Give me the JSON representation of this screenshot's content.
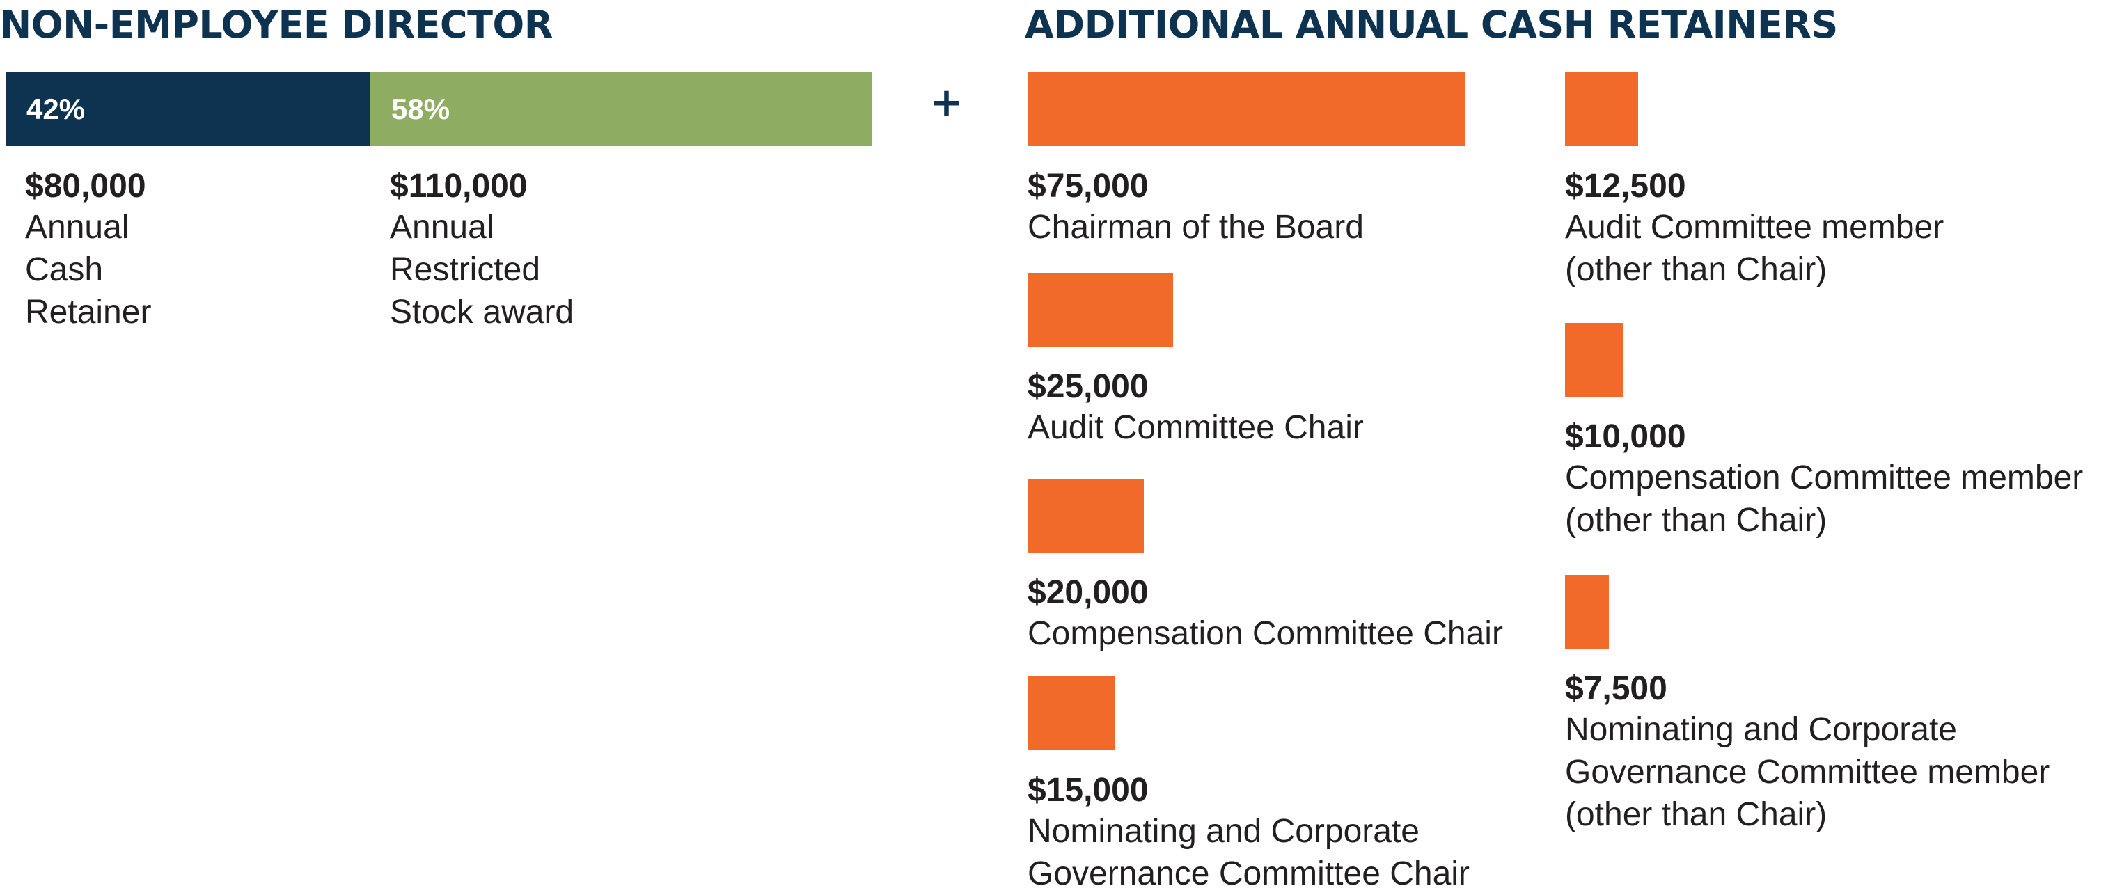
{
  "colors": {
    "heading": "#0d3351",
    "cash": "#0d3351",
    "stock": "#8fac63",
    "retainer": "#f26a2a",
    "text": "#231f20"
  },
  "left_title": "NON-EMPLOYEE DIRECTOR",
  "right_title": "ADDITIONAL ANNUAL CASH RETAINERS",
  "plus_symbol": "+",
  "chart_data": [
    {
      "type": "bar",
      "title": "NON-EMPLOYEE DIRECTOR",
      "orientation": "stacked-horizontal",
      "unit": "USD",
      "segments": [
        {
          "percent_label": "42%",
          "amount_label": "$80,000",
          "value": 80000,
          "label": "Annual\nCash\nRetainer",
          "color": "#0d3351"
        },
        {
          "percent_label": "58%",
          "amount_label": "$110,000",
          "value": 110000,
          "label": "Annual\nRestricted\nStock award",
          "color": "#8fac63"
        }
      ]
    },
    {
      "type": "bar",
      "title": "ADDITIONAL ANNUAL CASH RETAINERS",
      "orientation": "horizontal",
      "unit": "USD",
      "bar_color": "#f26a2a",
      "columns": [
        [
          {
            "amount_label": "$75,000",
            "value": 75000,
            "label": "Chairman of the Board"
          },
          {
            "amount_label": "$25,000",
            "value": 25000,
            "label": "Audit Committee Chair"
          },
          {
            "amount_label": "$20,000",
            "value": 20000,
            "label": "Compensation Committee Chair"
          },
          {
            "amount_label": "$15,000",
            "value": 15000,
            "label": "Nominating and Corporate\nGovernance Committee Chair"
          }
        ],
        [
          {
            "amount_label": "$12,500",
            "value": 12500,
            "label": "Audit Committee member\n(other than Chair)"
          },
          {
            "amount_label": "$10,000",
            "value": 10000,
            "label": "Compensation Committee member\n(other than Chair)"
          },
          {
            "amount_label": "$7,500",
            "value": 7500,
            "label": "Nominating and Corporate\nGovernance Committee member\n(other than Chair)"
          }
        ]
      ]
    }
  ]
}
